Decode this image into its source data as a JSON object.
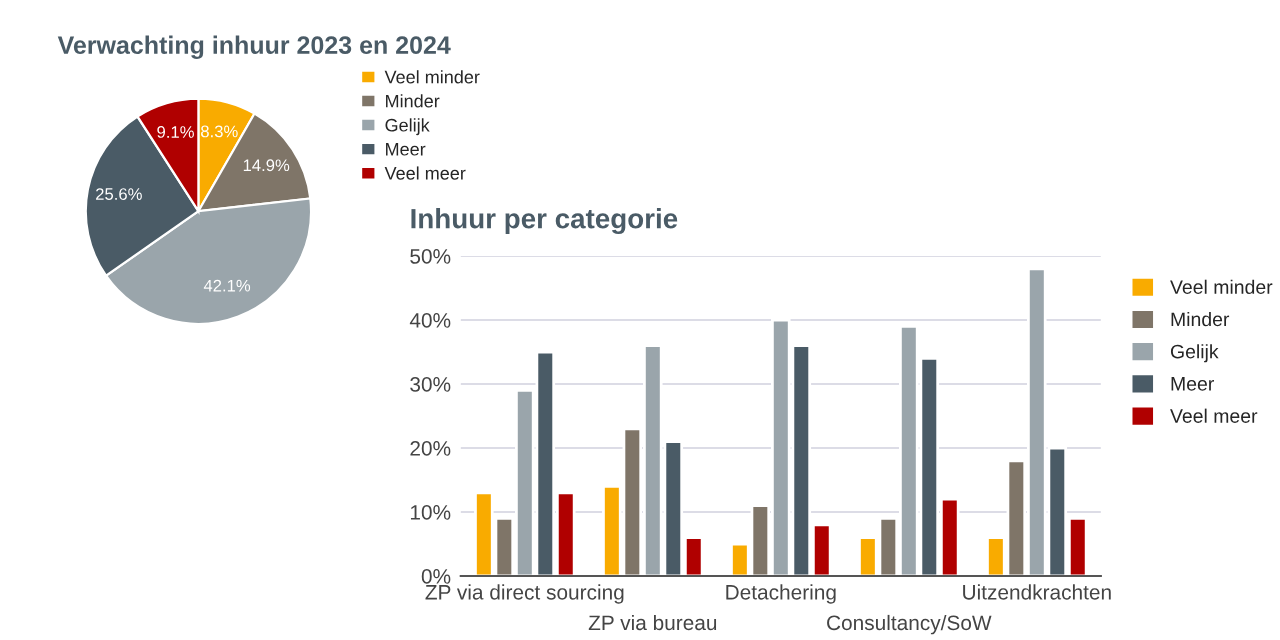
{
  "chart_data": [
    {
      "type": "pie",
      "title": "Verwachting inhuur 2023 en 2024",
      "categories": [
        "Veel minder",
        "Minder",
        "Gelijk",
        "Meer",
        "Veel meer"
      ],
      "values": [
        8.3,
        14.9,
        42.1,
        25.6,
        9.1
      ],
      "value_labels": [
        "8.3%",
        "14.9%",
        "42.1%",
        "25.6%",
        "9.1%"
      ],
      "colors": [
        "#f9ab00",
        "#7f7568",
        "#9aa5ab",
        "#4a5b66",
        "#b00000"
      ],
      "legend": "right"
    },
    {
      "type": "bar",
      "title": "Inhuur per categorie",
      "categories": [
        "ZP via direct sourcing",
        "ZP via bureau",
        "Detachering",
        "Consultancy/SoW",
        "Uitzendkrachten"
      ],
      "series": [
        {
          "name": "Veel minder",
          "color": "#f9ab00",
          "values": [
            13,
            14,
            5,
            6,
            6
          ]
        },
        {
          "name": "Minder",
          "color": "#7f7568",
          "values": [
            9,
            23,
            11,
            9,
            18
          ]
        },
        {
          "name": "Gelijk",
          "color": "#9aa5ab",
          "values": [
            29,
            36,
            40,
            39,
            48
          ]
        },
        {
          "name": "Meer",
          "color": "#4a5b66",
          "values": [
            35,
            21,
            36,
            34,
            20
          ]
        },
        {
          "name": "Veel meer",
          "color": "#b00000",
          "values": [
            13,
            6,
            8,
            12,
            9
          ]
        }
      ],
      "ylim": [
        0,
        50
      ],
      "yticks": [
        {
          "value": 0,
          "label": "0%"
        },
        {
          "value": 10,
          "label": "10%"
        },
        {
          "value": 20,
          "label": "20%"
        },
        {
          "value": 30,
          "label": "30%"
        },
        {
          "value": 40,
          "label": "40%"
        },
        {
          "value": 50,
          "label": "50%"
        }
      ],
      "grid": "y",
      "legend": "right"
    }
  ]
}
